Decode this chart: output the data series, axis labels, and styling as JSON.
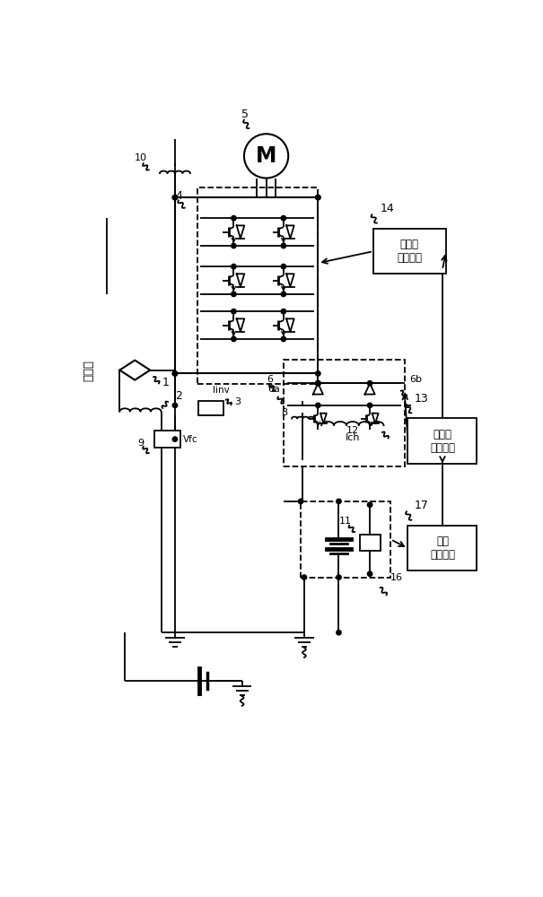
{
  "bg_color": "#ffffff",
  "figsize": [
    6.05,
    10.0
  ],
  "dpi": 100,
  "labels": {
    "dianshexian": "电车线",
    "motor_M": "M",
    "label_5": "5",
    "label_4": "4",
    "label_10": "10",
    "label_9": "9",
    "label_Vfc": "Vfc",
    "label_3": "3",
    "label_Iinv": "Iinv",
    "label_2": "2",
    "label_1": "1",
    "label_14": "14",
    "label_inverter_ctrl": "逆变器\n控制装置",
    "label_6": "6",
    "label_6a": "6a",
    "label_6b": "6b",
    "label_8": "8",
    "label_12": "12",
    "label_Ich": "Ich",
    "label_11": "11",
    "label_16": "16",
    "label_13": "13",
    "label_charge_ctrl": "充放电\n控制装置",
    "label_17": "17",
    "label_battery_ctrl": "蓄电\n控制装置"
  }
}
